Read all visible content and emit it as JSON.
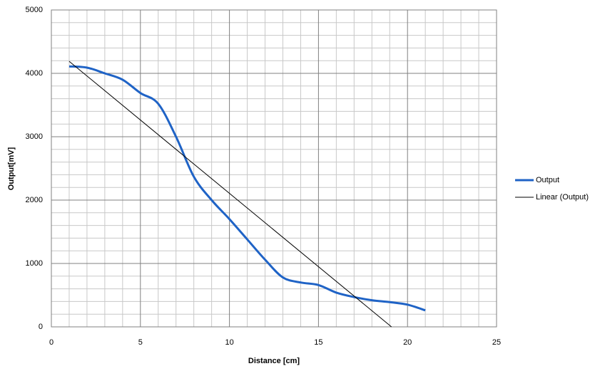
{
  "chart_data": {
    "type": "line",
    "xlabel": "Distance  [cm]",
    "ylabel": "Output[mV]",
    "xlim": [
      0,
      25
    ],
    "xticks": [
      0,
      5,
      10,
      15,
      20,
      25
    ],
    "ylim": [
      0,
      5000
    ],
    "yticks": [
      0,
      1000,
      2000,
      3000,
      4000,
      5000
    ],
    "xminorticks": [
      1,
      2,
      3,
      4,
      6,
      7,
      8,
      9,
      11,
      12,
      13,
      14,
      16,
      17,
      18,
      19,
      21,
      22,
      23,
      24
    ],
    "yminorticks": [
      200,
      400,
      600,
      800,
      1200,
      1400,
      1600,
      1800,
      2200,
      2400,
      2600,
      2800,
      3200,
      3400,
      3600,
      3800,
      4200,
      4400,
      4600,
      4800
    ],
    "grid": true,
    "legend": "right",
    "series": [
      {
        "name": "Output",
        "color": "#1f63c6",
        "smooth": true,
        "x": [
          1,
          2,
          3,
          4,
          5,
          6,
          7,
          8,
          9,
          10,
          11,
          12,
          13,
          14,
          15,
          16,
          17,
          18,
          19,
          20,
          21
        ],
        "values": [
          4110,
          4090,
          4000,
          3900,
          3690,
          3520,
          3000,
          2370,
          2000,
          1700,
          1380,
          1060,
          780,
          700,
          660,
          540,
          470,
          420,
          390,
          350,
          260
        ]
      },
      {
        "name": "Linear (Output)",
        "color": "#000000",
        "smooth": false,
        "x": [
          1,
          19.1
        ],
        "values": [
          4190,
          0
        ]
      }
    ]
  }
}
